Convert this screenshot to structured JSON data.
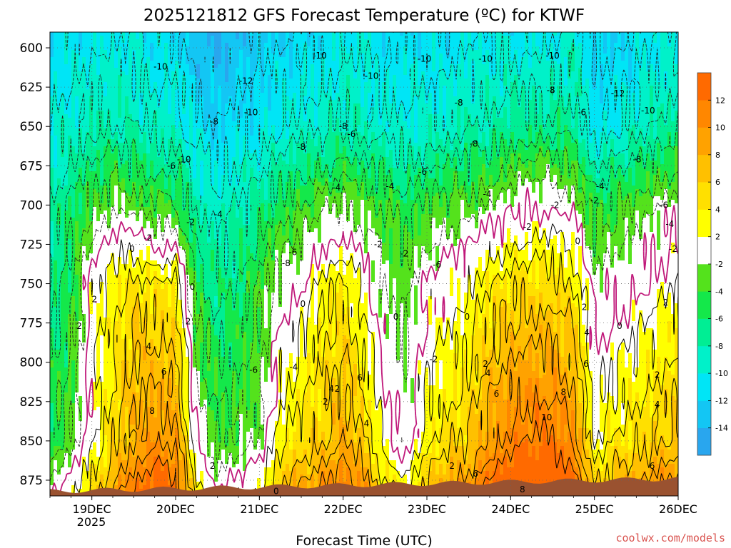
{
  "chart_data": {
    "type": "heatmap",
    "title": "2025121812 GFS Forecast Temperature (ºC) for KTWF",
    "xlabel": "Forecast Time (UTC)",
    "ylabel": "",
    "y_axis": {
      "ticks": [
        "600",
        "625",
        "650",
        "675",
        "700",
        "725",
        "750",
        "775",
        "800",
        "825",
        "850",
        "875"
      ],
      "range": [
        590,
        885
      ],
      "inverted": true
    },
    "x_axis": {
      "ticks": [
        "19DEC",
        "20DEC",
        "21DEC",
        "22DEC",
        "23DEC",
        "24DEC",
        "25DEC",
        "26DEC"
      ],
      "year_label": "2025",
      "range_days": [
        18.5,
        26.0
      ]
    },
    "grid": true,
    "colorbar": {
      "levels": [
        -16,
        -14,
        -12,
        -10,
        -8,
        -6,
        -4,
        -2,
        2,
        4,
        6,
        8,
        10,
        12,
        14
      ],
      "tick_labels": [
        "-14",
        "-12",
        "-10",
        "-8",
        "-6",
        "-4",
        "-2",
        "2",
        "4",
        "6",
        "8",
        "10",
        "12"
      ],
      "colors": [
        "#29a6ee",
        "#13c6f4",
        "#00e5f6",
        "#00f1c9",
        "#00ee94",
        "#14e84a",
        "#54e21c",
        "#ffffff",
        "#ffff00",
        "#ffe000",
        "#ffc000",
        "#ffa200",
        "#ff8700",
        "#ff6a00"
      ]
    },
    "series": [
      {
        "x": [
          18.5,
          18.75,
          19.0,
          19.25,
          19.5,
          19.75,
          20.0,
          20.25,
          20.5,
          20.75,
          21.0,
          21.25,
          21.5,
          21.75,
          22.0,
          22.25,
          22.5,
          22.75,
          23.0,
          23.25,
          23.5,
          23.75,
          24.0,
          24.25,
          24.5,
          24.75,
          25.0,
          25.25,
          25.5,
          25.75,
          26.0
        ],
        "values": [
          -5,
          -3,
          1,
          5,
          8,
          10,
          9,
          0,
          -4,
          -3,
          -2,
          3,
          5,
          6,
          8,
          6,
          1,
          -1,
          3,
          5,
          6,
          9,
          11,
          12,
          12,
          10,
          2,
          4,
          5,
          6,
          7
        ],
        "level": 850
      },
      {
        "x": [
          18.5,
          18.75,
          19.0,
          19.25,
          19.5,
          19.75,
          20.0,
          20.25,
          20.5,
          20.75,
          21.0,
          21.25,
          21.5,
          21.75,
          22.0,
          22.25,
          22.5,
          22.75,
          23.0,
          23.25,
          23.5,
          23.75,
          24.0,
          24.25,
          24.5,
          24.75,
          25.0,
          25.25,
          25.5,
          25.75,
          26.0
        ],
        "values": [
          -7,
          -5,
          1,
          3,
          5,
          4,
          4,
          -5,
          -7,
          -6,
          -4,
          -1,
          0,
          3,
          4,
          1,
          -2,
          -3,
          0,
          1,
          2,
          4,
          5,
          5,
          5,
          4,
          -1,
          -1,
          0,
          1,
          2
        ],
        "level": 750
      },
      {
        "x": [
          18.5,
          18.75,
          19.0,
          19.25,
          19.5,
          19.75,
          20.0,
          20.25,
          20.5,
          20.75,
          21.0,
          21.25,
          21.5,
          21.75,
          22.0,
          22.25,
          22.5,
          22.75,
          23.0,
          23.25,
          23.5,
          23.75,
          24.0,
          24.25,
          24.5,
          24.75,
          25.0,
          25.25,
          25.5,
          25.75,
          26.0
        ],
        "values": [
          -8,
          -6,
          -4,
          -2,
          -3,
          -4,
          -4,
          -8,
          -9,
          -8,
          -7,
          -5,
          -4,
          -3,
          -2,
          -3,
          -4,
          -5,
          -4,
          -3,
          -3,
          -2,
          -1,
          0,
          0,
          -1,
          -5,
          -4,
          -3,
          -2,
          -1
        ],
        "level": 700
      },
      {
        "x": [
          18.5,
          18.75,
          19.0,
          19.25,
          19.5,
          19.75,
          20.0,
          20.25,
          20.5,
          20.75,
          21.0,
          21.25,
          21.5,
          21.75,
          22.0,
          22.25,
          22.5,
          22.75,
          23.0,
          23.25,
          23.5,
          23.75,
          24.0,
          24.25,
          24.5,
          24.75,
          25.0,
          25.25,
          25.5,
          25.75,
          26.0
        ],
        "values": [
          -10,
          -9,
          -8,
          -8,
          -8,
          -9,
          -9,
          -11,
          -12,
          -11,
          -11,
          -10,
          -9,
          -9,
          -8,
          -9,
          -9,
          -10,
          -9,
          -9,
          -8,
          -8,
          -7,
          -7,
          -7,
          -7,
          -11,
          -10,
          -9,
          -8,
          -7
        ],
        "level": 650
      },
      {
        "x": [
          18.5,
          18.75,
          19.0,
          19.25,
          19.5,
          19.75,
          20.0,
          20.25,
          20.5,
          20.75,
          21.0,
          21.25,
          21.5,
          21.75,
          22.0,
          22.25,
          22.5,
          22.75,
          23.0,
          23.25,
          23.5,
          23.75,
          24.0,
          24.25,
          24.5,
          24.75,
          25.0,
          25.25,
          25.5,
          25.75,
          26.0
        ],
        "values": [
          -11,
          -11,
          -10,
          -10,
          -10,
          -11,
          -11,
          -13,
          -14,
          -13,
          -12,
          -12,
          -11,
          -11,
          -10,
          -10,
          -11,
          -11,
          -11,
          -11,
          -10,
          -10,
          -10,
          -10,
          -10,
          -9,
          -12,
          -12,
          -11,
          -10,
          -10
        ],
        "level": 600
      }
    ],
    "contour_labels": [
      {
        "t": 19.82,
        "p": 612,
        "text": "-10"
      },
      {
        "t": 20.84,
        "p": 621,
        "text": "-12"
      },
      {
        "t": 21.72,
        "p": 605,
        "text": "-10"
      },
      {
        "t": 22.34,
        "p": 618,
        "text": "-10"
      },
      {
        "t": 22.97,
        "p": 607,
        "text": "-10"
      },
      {
        "t": 23.7,
        "p": 607,
        "text": "-10"
      },
      {
        "t": 24.5,
        "p": 605,
        "text": "-10"
      },
      {
        "t": 24.48,
        "p": 627,
        "text": "-8"
      },
      {
        "t": 23.38,
        "p": 635,
        "text": "-8"
      },
      {
        "t": 22.0,
        "p": 650,
        "text": "-8"
      },
      {
        "t": 21.5,
        "p": 663,
        "text": "-8"
      },
      {
        "t": 20.46,
        "p": 647,
        "text": "-8"
      },
      {
        "t": 20.9,
        "p": 641,
        "text": "-10"
      },
      {
        "t": 20.1,
        "p": 671,
        "text": "-10"
      },
      {
        "t": 19.95,
        "p": 675,
        "text": "-6"
      },
      {
        "t": 22.1,
        "p": 655,
        "text": "-6"
      },
      {
        "t": 23.56,
        "p": 661,
        "text": "-8"
      },
      {
        "t": 24.85,
        "p": 641,
        "text": "-6"
      },
      {
        "t": 25.28,
        "p": 629,
        "text": "-12"
      },
      {
        "t": 25.64,
        "p": 640,
        "text": "-10"
      },
      {
        "t": 25.51,
        "p": 671,
        "text": "-8"
      },
      {
        "t": 25.07,
        "p": 688,
        "text": "-4"
      },
      {
        "t": 22.95,
        "p": 679,
        "text": "-6"
      },
      {
        "t": 21.92,
        "p": 689,
        "text": "-4"
      },
      {
        "t": 22.56,
        "p": 688,
        "text": "-4"
      },
      {
        "t": 23.72,
        "p": 693,
        "text": "-4"
      },
      {
        "t": 24.53,
        "p": 700,
        "text": "-2"
      },
      {
        "t": 25.0,
        "p": 697,
        "text": "-2"
      },
      {
        "t": 25.83,
        "p": 700,
        "text": "-6"
      },
      {
        "t": 25.9,
        "p": 712,
        "text": "-4"
      },
      {
        "t": 20.51,
        "p": 706,
        "text": "-4"
      },
      {
        "t": 20.18,
        "p": 711,
        "text": "-2"
      },
      {
        "t": 19.67,
        "p": 721,
        "text": "-2"
      },
      {
        "t": 19.48,
        "p": 728,
        "text": "0"
      },
      {
        "t": 21.32,
        "p": 737,
        "text": "-8"
      },
      {
        "t": 21.4,
        "p": 730,
        "text": "-6"
      },
      {
        "t": 22.42,
        "p": 725,
        "text": "-2"
      },
      {
        "t": 22.73,
        "p": 731,
        "text": "-2"
      },
      {
        "t": 23.12,
        "p": 738,
        "text": "-6"
      },
      {
        "t": 24.2,
        "p": 714,
        "text": "-2"
      },
      {
        "t": 24.8,
        "p": 723,
        "text": "0"
      },
      {
        "t": 25.94,
        "p": 728,
        "text": "-2"
      },
      {
        "t": 20.2,
        "p": 752,
        "text": "0"
      },
      {
        "t": 19.03,
        "p": 760,
        "text": "2"
      },
      {
        "t": 21.52,
        "p": 763,
        "text": "0"
      },
      {
        "t": 22.63,
        "p": 771,
        "text": "0"
      },
      {
        "t": 23.48,
        "p": 771,
        "text": "0"
      },
      {
        "t": 25.85,
        "p": 762,
        "text": "2"
      },
      {
        "t": 26.06,
        "p": 774,
        "text": "0"
      },
      {
        "t": 25.3,
        "p": 777,
        "text": "0"
      },
      {
        "t": 24.88,
        "p": 765,
        "text": "2"
      },
      {
        "t": 20.15,
        "p": 774,
        "text": "2"
      },
      {
        "t": 18.85,
        "p": 777,
        "text": "2"
      },
      {
        "t": 19.68,
        "p": 790,
        "text": "4"
      },
      {
        "t": 20.93,
        "p": 805,
        "text": "-6"
      },
      {
        "t": 21.41,
        "p": 803,
        "text": "-4"
      },
      {
        "t": 23.08,
        "p": 798,
        "text": "-2"
      },
      {
        "t": 23.7,
        "p": 801,
        "text": "2"
      },
      {
        "t": 24.91,
        "p": 781,
        "text": "4"
      },
      {
        "t": 25.75,
        "p": 808,
        "text": "2"
      },
      {
        "t": 24.9,
        "p": 801,
        "text": "6"
      },
      {
        "t": 24.63,
        "p": 819,
        "text": "8"
      },
      {
        "t": 24.43,
        "p": 835,
        "text": "10"
      },
      {
        "t": 25.75,
        "p": 827,
        "text": "4"
      },
      {
        "t": 22.2,
        "p": 810,
        "text": "6"
      },
      {
        "t": 21.93,
        "p": 817,
        "text": "2"
      },
      {
        "t": 21.86,
        "p": 817,
        "text": "4"
      },
      {
        "t": 19.86,
        "p": 806,
        "text": "6"
      },
      {
        "t": 19.72,
        "p": 831,
        "text": "8"
      },
      {
        "t": 23.83,
        "p": 820,
        "text": "6"
      },
      {
        "t": 23.73,
        "p": 807,
        "text": "4"
      },
      {
        "t": 21.79,
        "p": 825,
        "text": "2"
      },
      {
        "t": 22.28,
        "p": 839,
        "text": "4"
      },
      {
        "t": 23.3,
        "p": 866,
        "text": "2"
      },
      {
        "t": 20.44,
        "p": 866,
        "text": "2"
      },
      {
        "t": 23.58,
        "p": 871,
        "text": "6"
      },
      {
        "t": 24.14,
        "p": 881,
        "text": "8"
      },
      {
        "t": 25.69,
        "p": 866,
        "text": "6"
      },
      {
        "t": 21.2,
        "p": 882,
        "text": "0"
      }
    ]
  },
  "credit": "coolwx.com/models"
}
